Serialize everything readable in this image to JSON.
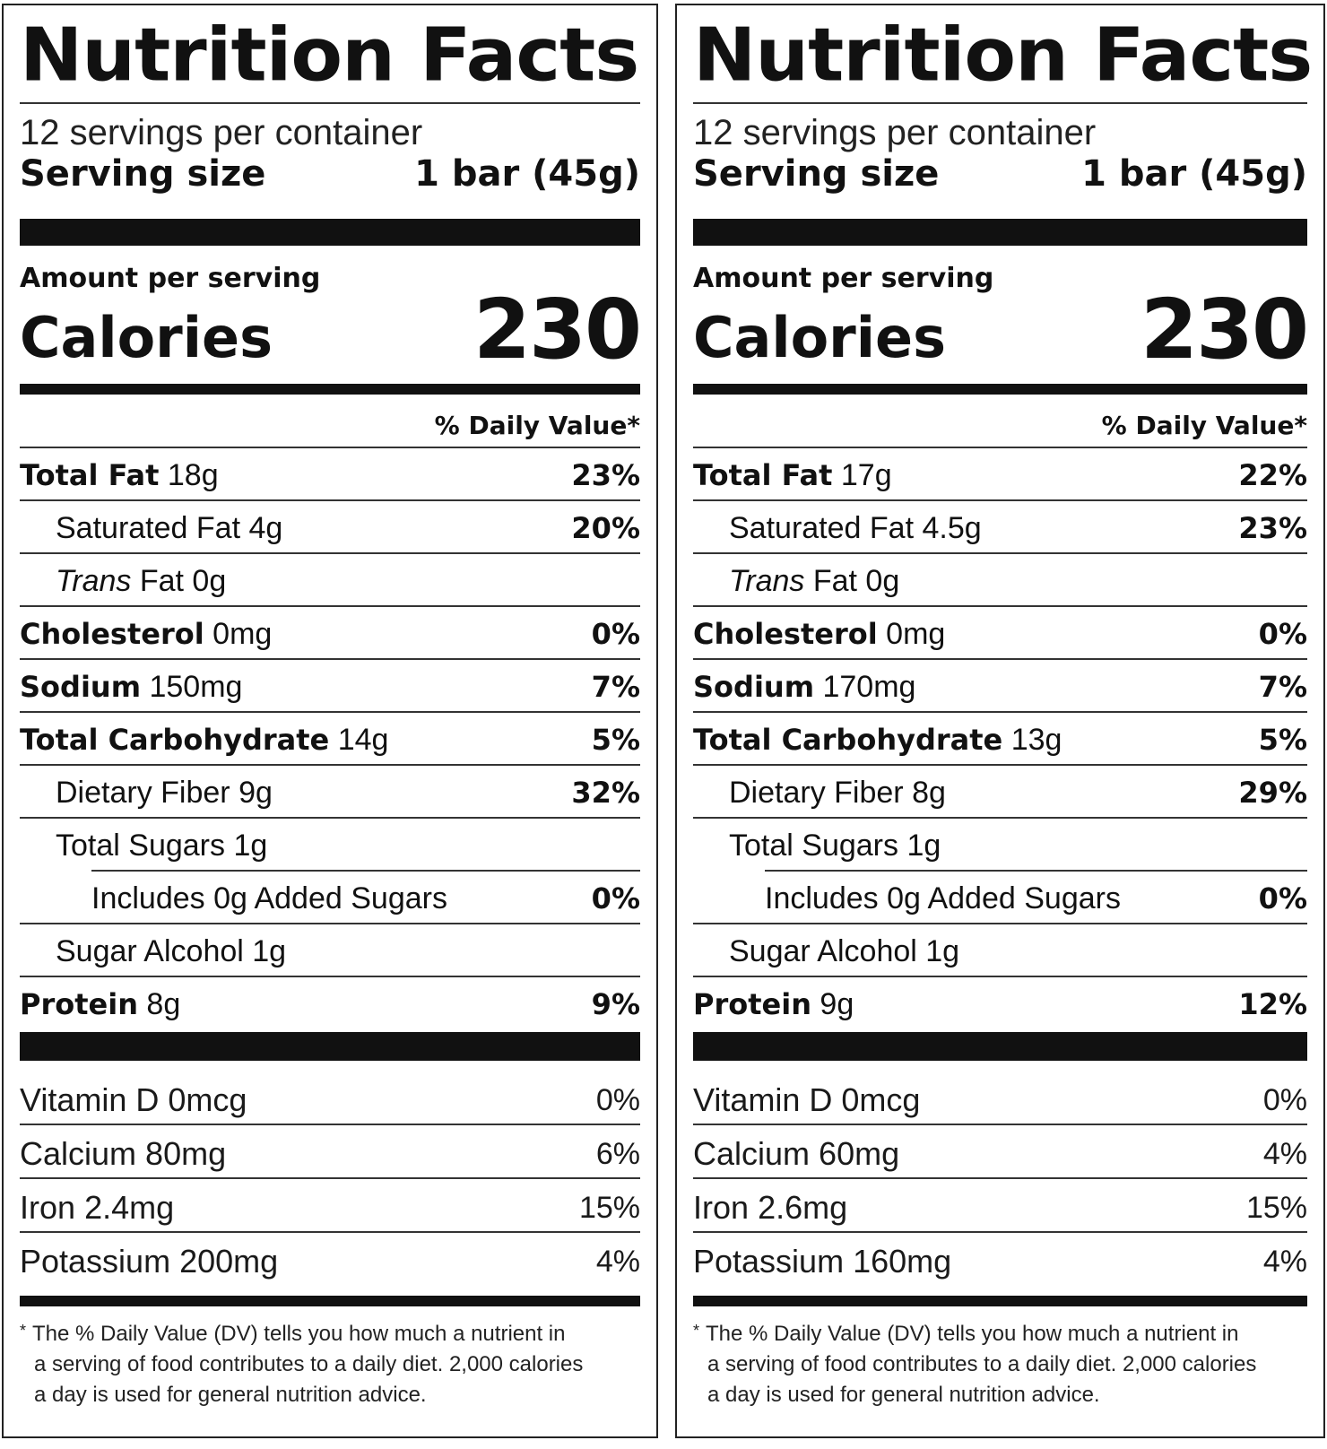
{
  "labels": [
    {
      "title": "Nutrition Facts",
      "servings_per_container": "12 servings per container",
      "serving_size_label": "Serving size",
      "serving_size_value": "1 bar (45g)",
      "amount_per_serving": "Amount per serving",
      "calories_label": "Calories",
      "calories_value": "230",
      "daily_value_header": "% Daily Value*",
      "nutrients": [
        {
          "name": "Total Fat",
          "amount": "18g",
          "dv": "23%"
        },
        {
          "name": "Saturated Fat",
          "amount": "4g",
          "dv": "20%"
        },
        {
          "name": "Trans",
          "suffix": "Fat",
          "amount": "0g",
          "dv": ""
        },
        {
          "name": "Cholesterol",
          "amount": "0mg",
          "dv": "0%"
        },
        {
          "name": "Sodium",
          "amount": "150mg",
          "dv": "7%"
        },
        {
          "name": "Total Carbohydrate",
          "amount": "14g",
          "dv": "5%"
        },
        {
          "name": "Dietary Fiber",
          "amount": "9g",
          "dv": "32%"
        },
        {
          "name": "Total Sugars",
          "amount": "1g",
          "dv": ""
        },
        {
          "name": "Includes 0g Added Sugars",
          "dv": "0%"
        },
        {
          "name": "Sugar Alcohol",
          "amount": "1g",
          "dv": ""
        },
        {
          "name": "Protein",
          "amount": "8g",
          "dv": "9%"
        }
      ],
      "vitamins": [
        {
          "name": "Vitamin D",
          "amount": "0mcg",
          "dv": "0%"
        },
        {
          "name": "Calcium",
          "amount": "80mg",
          "dv": "6%"
        },
        {
          "name": "Iron",
          "amount": "2.4mg",
          "dv": "15%"
        },
        {
          "name": "Potassium",
          "amount": "200mg",
          "dv": "4%"
        }
      ],
      "footnote_star": "*",
      "footnote_lines": [
        "The % Daily Value (DV) tells you how much a nutrient in",
        "a serving of food contributes to a daily diet. 2,000 calories",
        "a day is used for general nutrition advice."
      ]
    },
    {
      "title": "Nutrition Facts",
      "servings_per_container": "12 servings per container",
      "serving_size_label": "Serving size",
      "serving_size_value": "1 bar (45g)",
      "amount_per_serving": "Amount per serving",
      "calories_label": "Calories",
      "calories_value": "230",
      "daily_value_header": "% Daily Value*",
      "nutrients": [
        {
          "name": "Total Fat",
          "amount": "17g",
          "dv": "22%"
        },
        {
          "name": "Saturated Fat",
          "amount": "4.5g",
          "dv": "23%"
        },
        {
          "name": "Trans",
          "suffix": "Fat",
          "amount": "0g",
          "dv": ""
        },
        {
          "name": "Cholesterol",
          "amount": "0mg",
          "dv": "0%"
        },
        {
          "name": "Sodium",
          "amount": "170mg",
          "dv": "7%"
        },
        {
          "name": "Total Carbohydrate",
          "amount": "13g",
          "dv": "5%"
        },
        {
          "name": "Dietary Fiber",
          "amount": "8g",
          "dv": "29%"
        },
        {
          "name": "Total Sugars",
          "amount": "1g",
          "dv": ""
        },
        {
          "name": "Includes 0g Added Sugars",
          "dv": "0%"
        },
        {
          "name": "Sugar Alcohol",
          "amount": "1g",
          "dv": ""
        },
        {
          "name": "Protein",
          "amount": "9g",
          "dv": "12%"
        }
      ],
      "vitamins": [
        {
          "name": "Vitamin D",
          "amount": "0mcg",
          "dv": "0%"
        },
        {
          "name": "Calcium",
          "amount": "60mg",
          "dv": "4%"
        },
        {
          "name": "Iron",
          "amount": "2.6mg",
          "dv": "15%"
        },
        {
          "name": "Potassium",
          "amount": "160mg",
          "dv": "4%"
        }
      ],
      "footnote_star": "*",
      "footnote_lines": [
        "The % Daily Value (DV) tells you how much a nutrient in",
        "a serving of food contributes to a daily diet. 2,000 calories",
        "a day is used for general nutrition advice."
      ]
    }
  ]
}
